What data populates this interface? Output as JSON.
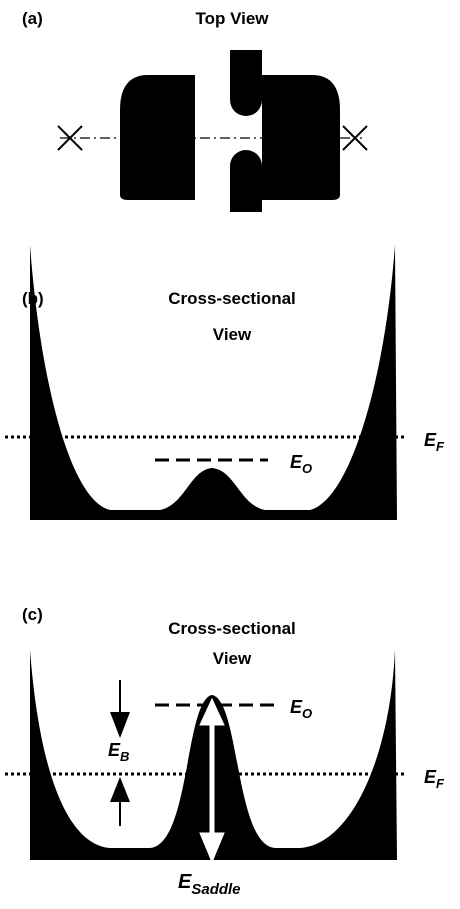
{
  "panels": [
    {
      "label": "(a)",
      "title": "Top View"
    },
    {
      "label": "(b)",
      "title": [
        "Cross-sectional",
        "View"
      ],
      "fermi": {
        "symbol": "E",
        "subscript": "F"
      },
      "ground": {
        "symbol": "E",
        "subscript": "O"
      }
    },
    {
      "label": "(c)",
      "title": [
        "Cross-sectional",
        "View"
      ],
      "fermi": {
        "symbol": "E",
        "subscript": "F"
      },
      "ground": {
        "symbol": "E",
        "subscript": "O"
      },
      "barrier": {
        "symbol": "E",
        "subscript": "B"
      },
      "saddle": {
        "symbol": "E",
        "subscript": "Saddle"
      }
    }
  ]
}
